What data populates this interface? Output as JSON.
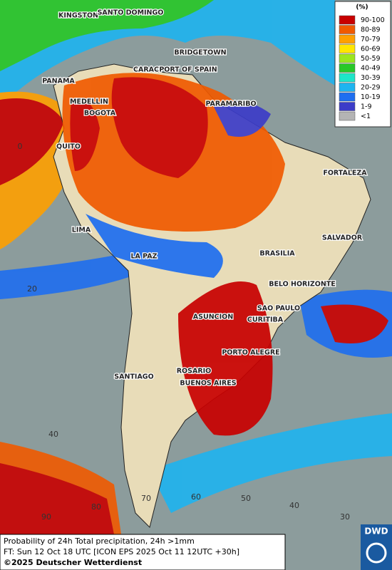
{
  "map": {
    "legend": {
      "title": "(%)",
      "entries": [
        {
          "label": "90-100",
          "color": "#c80000"
        },
        {
          "label": "80-89",
          "color": "#f05a00"
        },
        {
          "label": "70-79",
          "color": "#ffa000"
        },
        {
          "label": "60-69",
          "color": "#ffe600"
        },
        {
          "label": "50-59",
          "color": "#9be61e"
        },
        {
          "label": "40-49",
          "color": "#28c828"
        },
        {
          "label": "30-39",
          "color": "#1ee6c8"
        },
        {
          "label": "20-29",
          "color": "#1eb4f0"
        },
        {
          "label": "10-19",
          "color": "#1e6ef0"
        },
        {
          "label": "1-9",
          "color": "#3c3cc8"
        },
        {
          "label": "<1",
          "color": "#b4b4b4"
        }
      ]
    },
    "cities": [
      "KINGSTON",
      "SANTO DOMINGO",
      "BRIDGETOWN",
      "CARAC",
      "PORT OF SPAIN",
      "PANAMA",
      "MEDELLIN",
      "BOGOTA",
      "PARAMARIBO",
      "QUITO",
      "FORTALEZA",
      "LIMA",
      "SALVADOR",
      "LA PAZ",
      "BRASILIA",
      "BELO HORIZONTE",
      "SAO PAULO",
      "ASUNCION",
      "CURITIBA",
      "PORTO ALEGRE",
      "ROSARIO",
      "SANTIAGO",
      "BUENOS AIRES"
    ],
    "latitude_labels": [
      "0",
      "20",
      "40"
    ],
    "longitude_labels": [
      "90",
      "80",
      "70",
      "60",
      "50",
      "40",
      "30"
    ],
    "footer": {
      "line1": "Probability of 24h Total precipitation, 24h >1mm",
      "line2": "FT: Sun 12 Oct 18 UTC [ICON EPS 2025 Oct 11 12UTC +30h]",
      "line3": "©2025 Deutscher Wetterdienst"
    },
    "logo": "DWD"
  }
}
